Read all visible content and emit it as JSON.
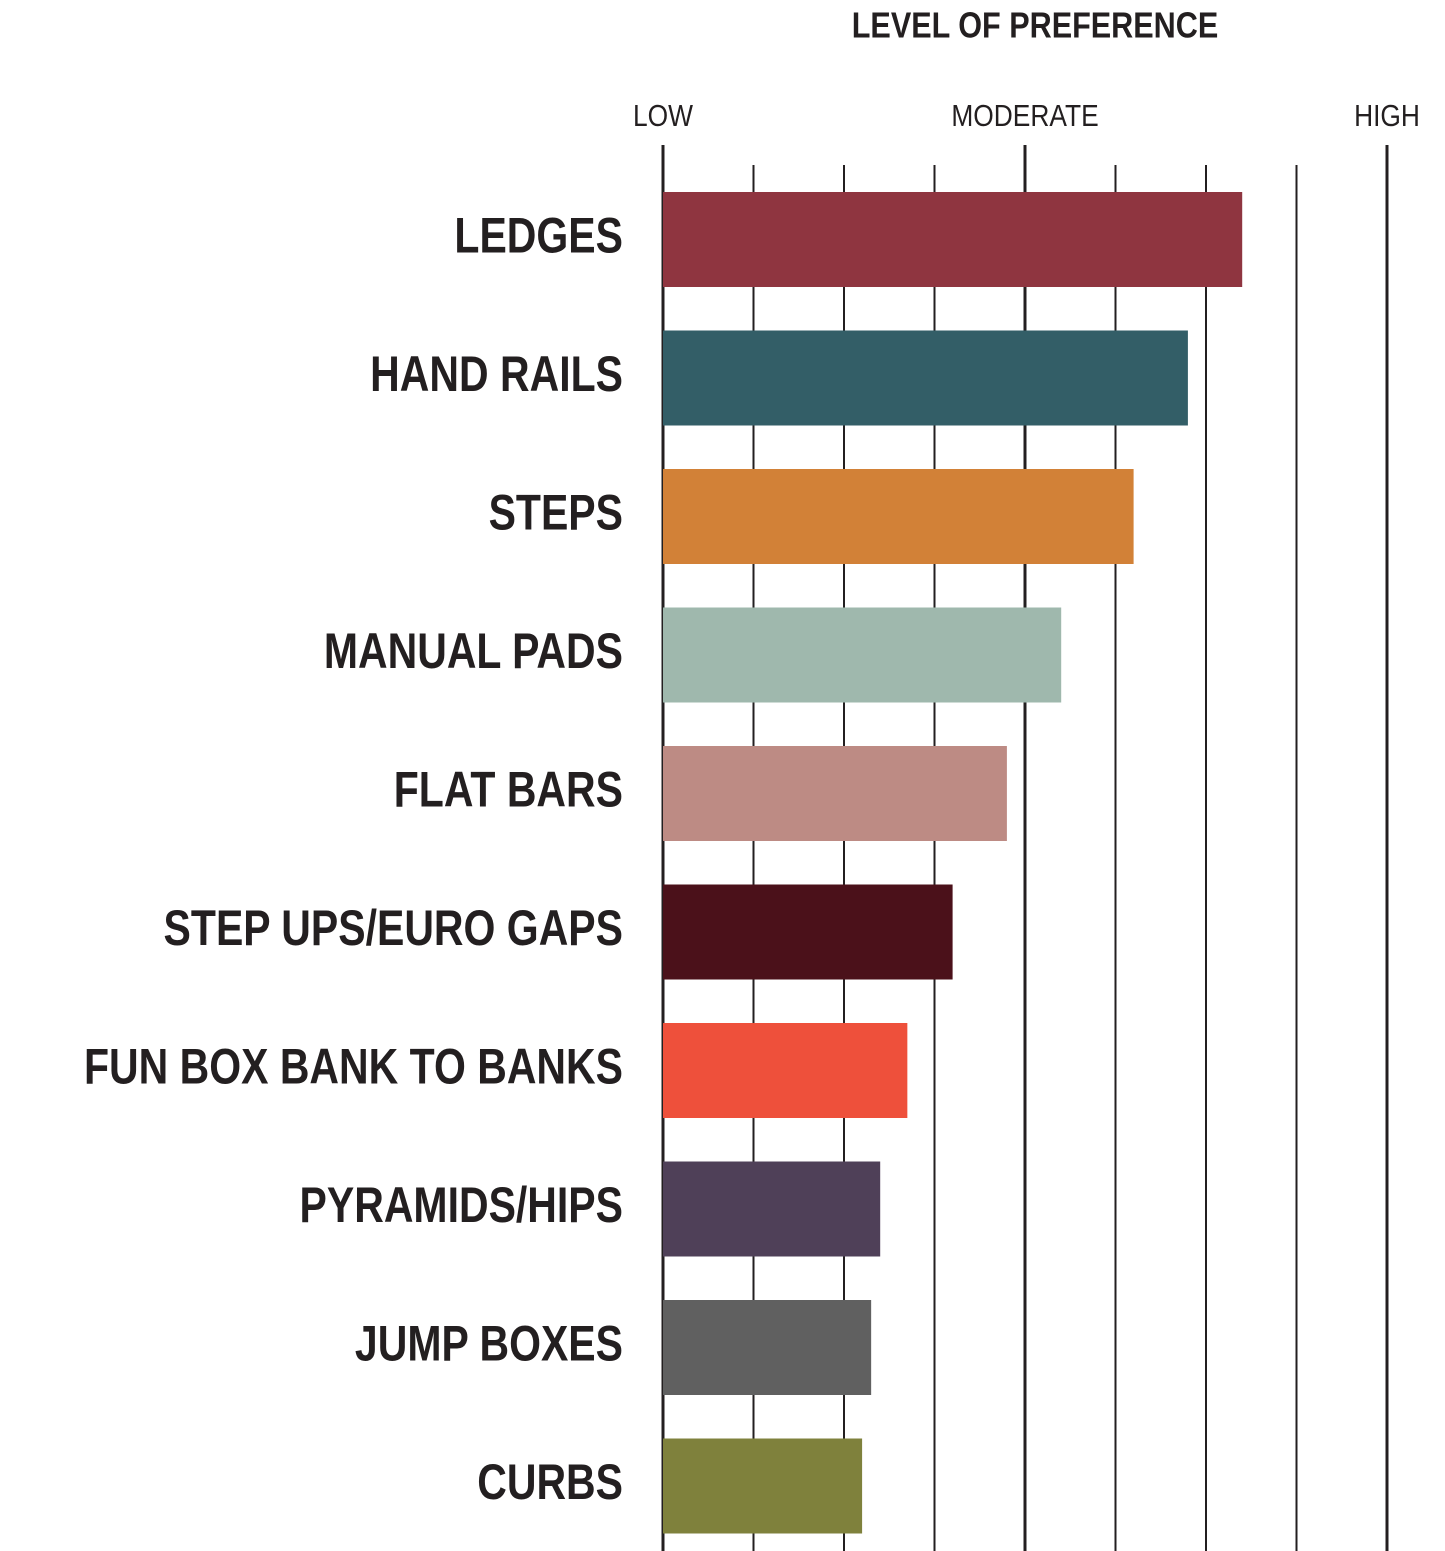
{
  "chart_data": {
    "type": "barh",
    "title": "LEVEL OF PREFERENCE",
    "categories": [
      "LEDGES",
      "HAND RAILS",
      "STEPS",
      "MANUAL PADS",
      "FLAT BARS",
      "STEP UPS/EURO GAPS",
      "FUN BOX BANK TO BANKS",
      "PYRAMIDS/HIPS",
      "JUMP BOXES",
      "CURBS"
    ],
    "values": [
      6.4,
      5.8,
      5.2,
      4.4,
      3.8,
      3.2,
      2.7,
      2.4,
      2.3,
      2.2
    ],
    "colors": [
      "#8f3540",
      "#335e67",
      "#d28137",
      "#9fb8ad",
      "#bd8b84",
      "#4b111a",
      "#ee503b",
      "#4f4058",
      "#606060",
      "#7f813c"
    ],
    "xlim": [
      0,
      8
    ],
    "xticks": [
      {
        "value": 0,
        "label": "LOW"
      },
      {
        "value": 4,
        "label": "MODERATE"
      },
      {
        "value": 8,
        "label": "HIGH"
      }
    ],
    "minor_xticks": [
      1,
      2,
      3,
      5,
      6,
      7
    ],
    "grid": true
  }
}
